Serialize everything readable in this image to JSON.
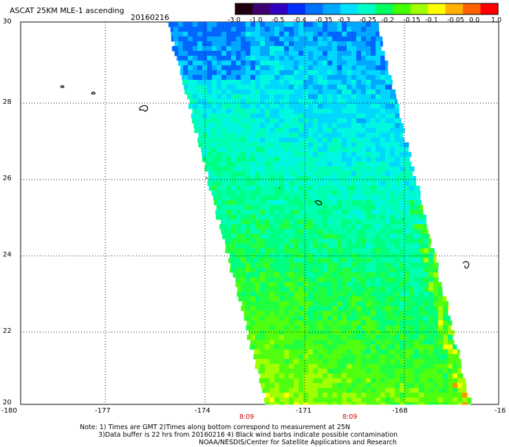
{
  "header": {
    "title": "ASCAT 25KM MLE-1 ascending",
    "date": "20160216"
  },
  "colorbar": {
    "labels": [
      "-3.0",
      "-1.0",
      "-0.5",
      "-0.4",
      "-0.35",
      "-0.3",
      "-0.25",
      "-0.2",
      "-0.15",
      "-0.1",
      "-0.05",
      "0.0",
      "1.0"
    ],
    "colors": [
      "#200010",
      "#400070",
      "#3000c0",
      "#0030ff",
      "#0070ff",
      "#00a8ff",
      "#00e0ff",
      "#00ffc8",
      "#00ff60",
      "#40ff00",
      "#a0ff00",
      "#ffff00",
      "#ffb000",
      "#ff6000",
      "#ff0000"
    ]
  },
  "map": {
    "lon_labels": [
      "-180",
      "-177",
      "-174",
      "-171",
      "-168",
      "-16"
    ],
    "lat_labels": [
      "30",
      "28",
      "26",
      "24",
      "22",
      "20"
    ],
    "lon_range": [
      -180,
      -165
    ],
    "lat_range": [
      20,
      30
    ],
    "time_labels": [
      "8:09",
      "8:09"
    ]
  },
  "notes": {
    "line1": "Note: 1) Times are GMT 2)Times along bottom correspond to measurement at 25N",
    "line2": "3)Data buffer is 22 hrs from 20160216 4) Black wind barbs indicate possible contamination",
    "line3": "NOAA/NESDIS/Center for Satellite Applications and Research"
  }
}
